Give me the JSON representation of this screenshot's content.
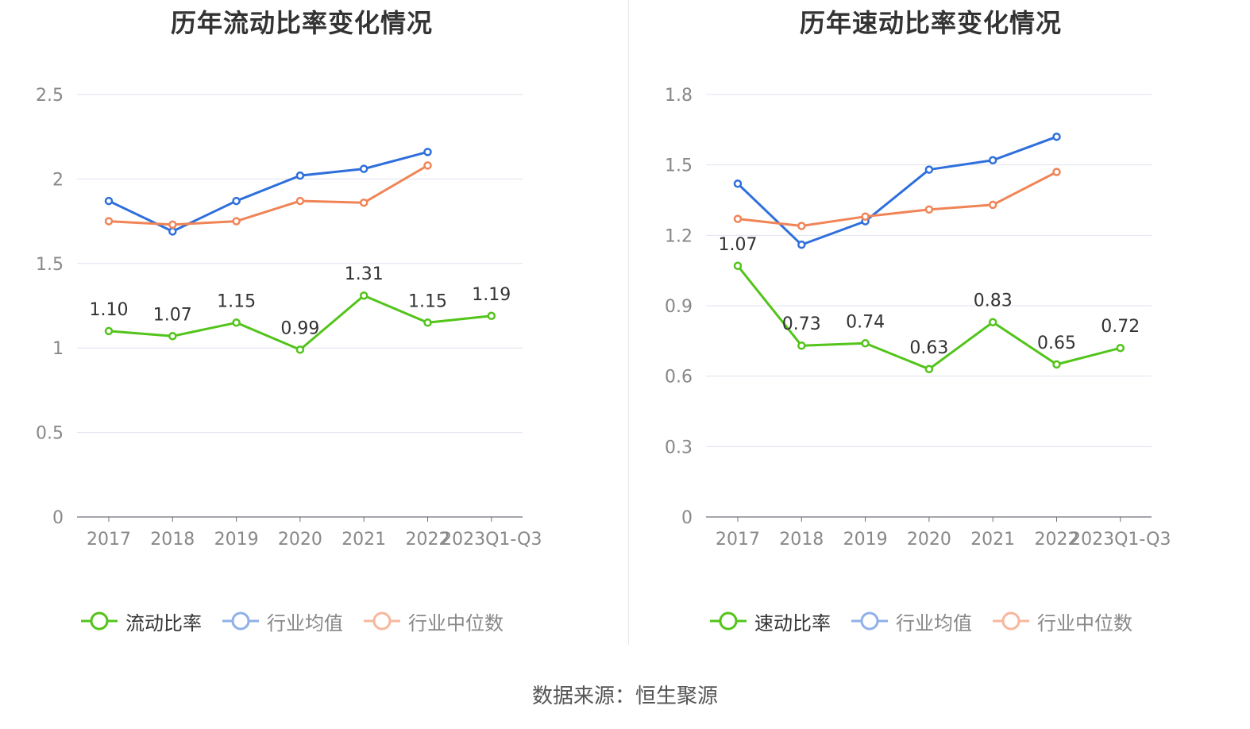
{
  "chart_data": [
    {
      "type": "line",
      "title": "历年流动比率变化情况",
      "categories": [
        "2017",
        "2018",
        "2019",
        "2020",
        "2021",
        "2022",
        "2023Q1-Q3"
      ],
      "ylim": [
        0,
        2.5
      ],
      "yticks": [
        "0",
        "0.5",
        "1",
        "1.5",
        "2",
        "2.5"
      ],
      "ytick_values": [
        0,
        0.5,
        1,
        1.5,
        2,
        2.5
      ],
      "grid": true,
      "legend_position": "bottom",
      "series": [
        {
          "name": "流动比率",
          "color": "#52c41a",
          "values": [
            1.1,
            1.07,
            1.15,
            0.99,
            1.31,
            1.15,
            1.19
          ],
          "labels": [
            "1.10",
            "1.07",
            "1.15",
            "0.99",
            "1.31",
            "1.15",
            "1.19"
          ]
        },
        {
          "name": "行业均值",
          "color": "#2f6fdc",
          "values": [
            1.87,
            1.69,
            1.87,
            2.02,
            2.06,
            2.16,
            null
          ]
        },
        {
          "name": "行业中位数",
          "color": "#f08456",
          "values": [
            1.75,
            1.73,
            1.75,
            1.87,
            1.86,
            2.08,
            null
          ]
        }
      ]
    },
    {
      "type": "line",
      "title": "历年速动比率变化情况",
      "categories": [
        "2017",
        "2018",
        "2019",
        "2020",
        "2021",
        "2022",
        "2023Q1-Q3"
      ],
      "ylim": [
        0,
        1.8
      ],
      "yticks": [
        "0",
        "0.3",
        "0.6",
        "0.9",
        "1.2",
        "1.5",
        "1.8"
      ],
      "ytick_values": [
        0,
        0.3,
        0.6,
        0.9,
        1.2,
        1.5,
        1.8
      ],
      "grid": true,
      "legend_position": "bottom",
      "series": [
        {
          "name": "速动比率",
          "color": "#52c41a",
          "values": [
            1.07,
            0.73,
            0.74,
            0.63,
            0.83,
            0.65,
            0.72
          ],
          "labels": [
            "1.07",
            "0.73",
            "0.74",
            "0.63",
            "0.83",
            "0.65",
            "0.72"
          ]
        },
        {
          "name": "行业均值",
          "color": "#2f6fdc",
          "values": [
            1.42,
            1.16,
            1.26,
            1.48,
            1.52,
            1.62,
            null
          ]
        },
        {
          "name": "行业中位数",
          "color": "#f08456",
          "values": [
            1.27,
            1.24,
            1.28,
            1.31,
            1.33,
            1.47,
            null
          ]
        }
      ]
    }
  ],
  "legend_colors": {
    "active_text": "#333333",
    "inactive_text": "#888888",
    "blue_light": "#8fb0e8",
    "orange_light": "#f6b79c"
  },
  "footer": {
    "source_text": "数据来源：恒生聚源"
  }
}
